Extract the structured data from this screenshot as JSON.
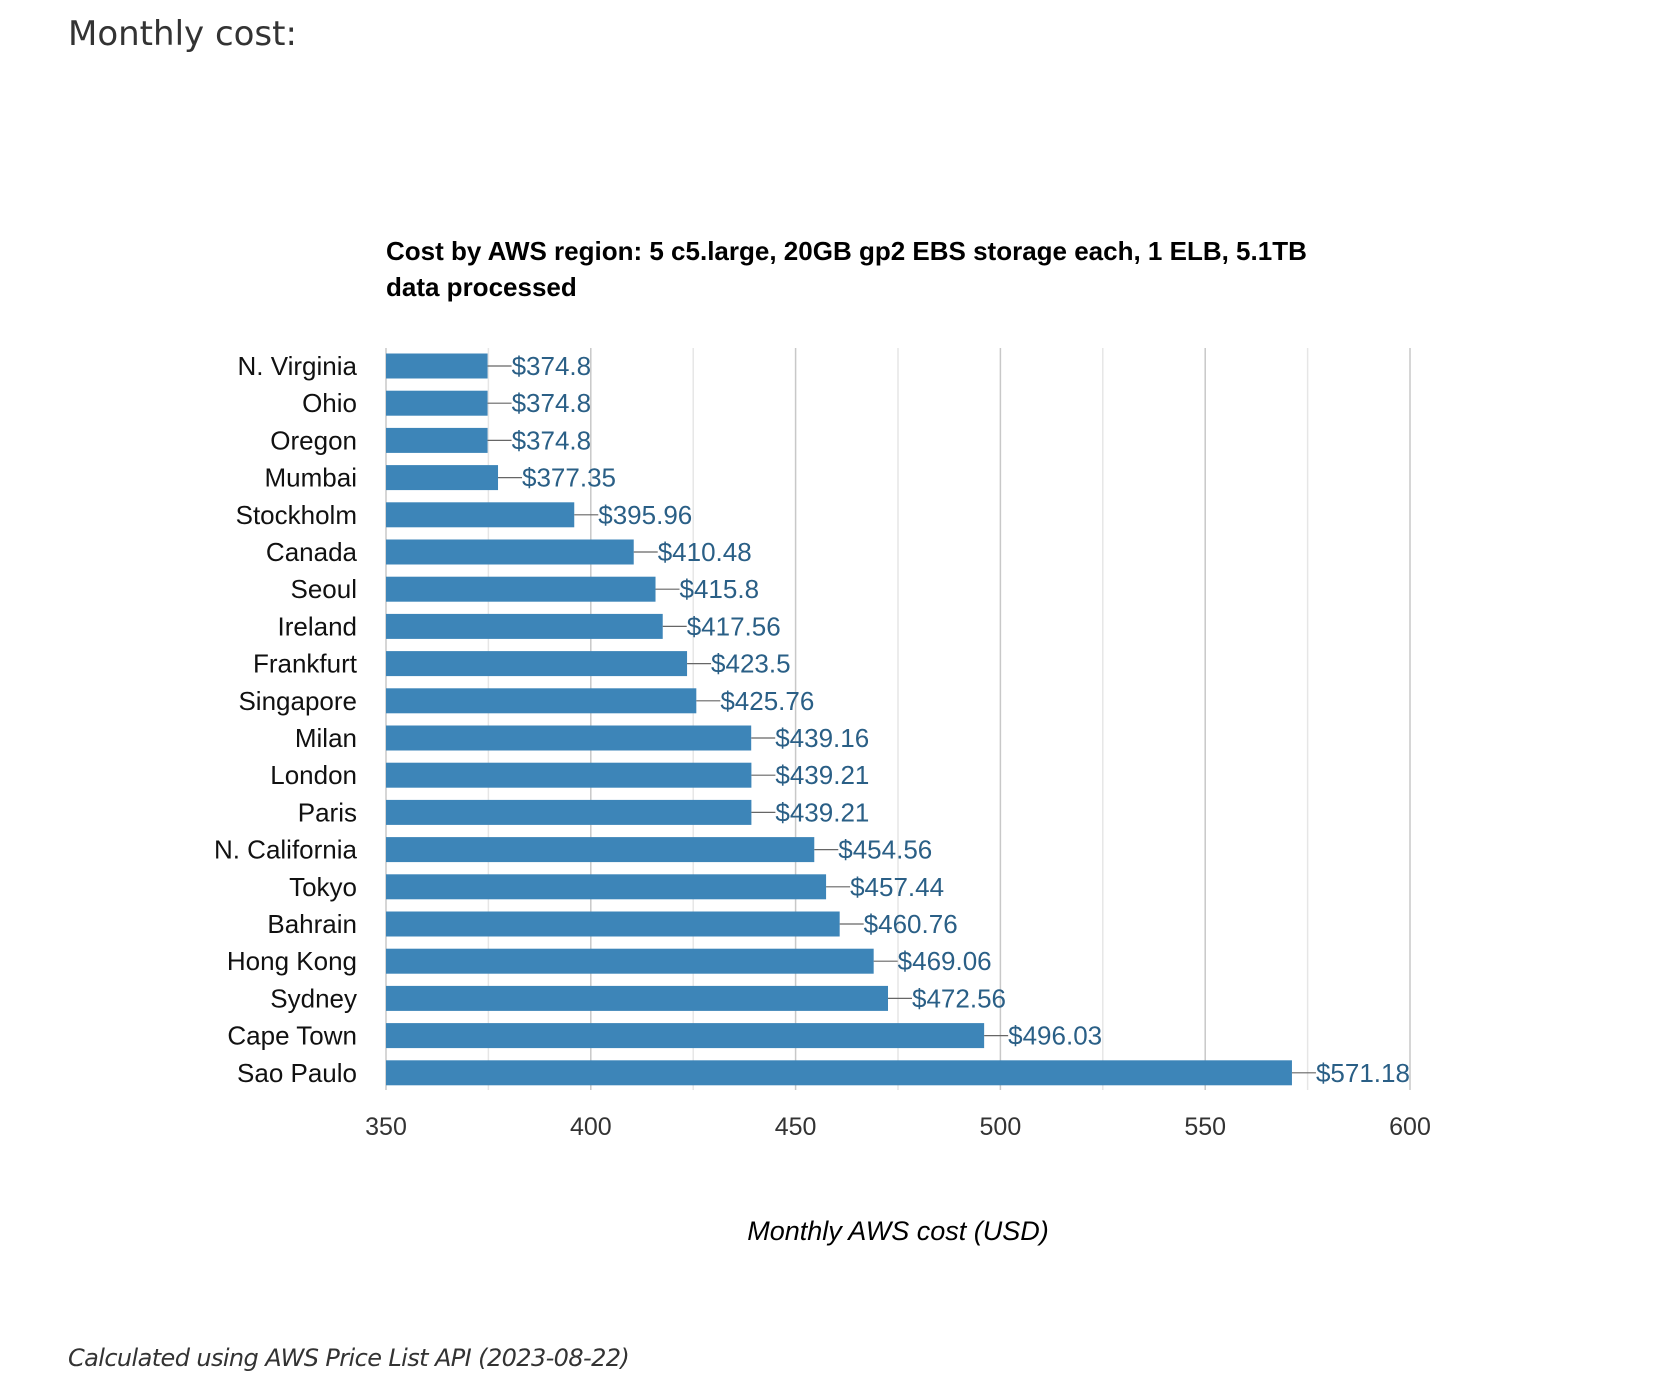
{
  "heading": "Monthly cost:",
  "footnote": "Calculated using AWS Price List API (2023-08-22)",
  "colors": {
    "bar": "#3d85b8",
    "value_label": "#2a5f86",
    "gridline_major": "#c8c8c8",
    "gridline_minor": "#e6e6e6"
  },
  "chart_data": {
    "type": "bar",
    "orientation": "horizontal",
    "title_lines": [
      "Cost by AWS region: 5 c5.large, 20GB gp2 EBS storage each, 1 ELB, 5.1TB",
      "data processed"
    ],
    "xlabel": "Monthly AWS cost (USD)",
    "ylabel": "",
    "xlim": [
      350,
      600
    ],
    "x_ticks": [
      350,
      400,
      450,
      500,
      550,
      600
    ],
    "grid": true,
    "categories": [
      "N. Virginia",
      "Ohio",
      "Oregon",
      "Mumbai",
      "Stockholm",
      "Canada",
      "Seoul",
      "Ireland",
      "Frankfurt",
      "Singapore",
      "Milan",
      "London",
      "Paris",
      "N. California",
      "Tokyo",
      "Bahrain",
      "Hong Kong",
      "Sydney",
      "Cape Town",
      "Sao Paulo"
    ],
    "values": [
      374.8,
      374.8,
      374.8,
      377.35,
      395.96,
      410.48,
      415.8,
      417.56,
      423.5,
      425.76,
      439.16,
      439.21,
      439.21,
      454.56,
      457.44,
      460.76,
      469.06,
      472.56,
      496.03,
      571.18
    ],
    "value_labels": [
      "$374.8",
      "$374.8",
      "$374.8",
      "$377.35",
      "$395.96",
      "$410.48",
      "$415.8",
      "$417.56",
      "$423.5",
      "$425.76",
      "$439.16",
      "$439.21",
      "$439.21",
      "$454.56",
      "$457.44",
      "$460.76",
      "$469.06",
      "$472.56",
      "$496.03",
      "$571.18"
    ]
  }
}
